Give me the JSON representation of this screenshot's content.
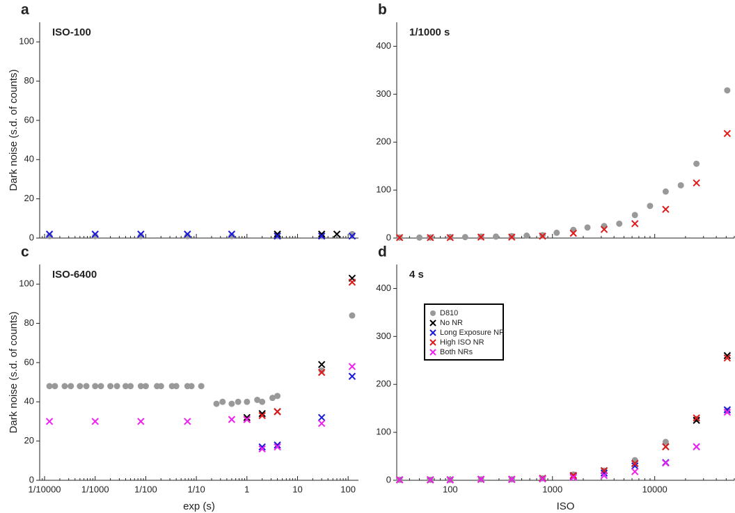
{
  "chart_data": [
    {
      "type": "scatter",
      "panel_label": "a",
      "title": "ISO-100",
      "ylabel": "Dark noise (s.d. of counts)",
      "log_x": true,
      "xlim": [
        8e-05,
        160
      ],
      "ylim": [
        0,
        110
      ],
      "xticks": [
        0.0001,
        0.001,
        0.01,
        0.1,
        1,
        10,
        100
      ],
      "show_xtick_labels": false,
      "yticks": [
        0,
        20,
        40,
        60,
        80,
        100
      ],
      "series": [
        {
          "color": "#999999",
          "marker": "dot",
          "x": [
            0.000125,
            0.001,
            0.008,
            0.0667,
            0.5,
            4,
            30,
            120
          ],
          "values": [
            1,
            1,
            1,
            1,
            1,
            1,
            1,
            2
          ]
        },
        {
          "color": "#000000",
          "marker": "cross",
          "x": [
            4,
            30,
            60
          ],
          "values": [
            2,
            2,
            2
          ]
        },
        {
          "color": "#1a1adb",
          "marker": "cross",
          "x": [
            0.000125,
            0.001,
            0.008,
            0.0667,
            0.5,
            4,
            30,
            120
          ],
          "values": [
            2,
            2,
            2,
            2,
            2,
            1,
            1,
            1
          ]
        }
      ]
    },
    {
      "type": "scatter",
      "panel_label": "b",
      "title": "1/1000 s",
      "log_x": true,
      "xlim": [
        30,
        60000
      ],
      "ylim": [
        0,
        450
      ],
      "xticks": [
        100,
        1000,
        10000
      ],
      "show_xtick_labels": false,
      "yticks": [
        0,
        100,
        200,
        300,
        400
      ],
      "series": [
        {
          "color": "#999999",
          "marker": "dot",
          "x": [
            32,
            50,
            64,
            100,
            140,
            200,
            280,
            400,
            560,
            800,
            1100,
            1600,
            2200,
            3200,
            4500,
            6400,
            9000,
            12800,
            18000,
            25600,
            51200
          ],
          "values": [
            1,
            1,
            1,
            2,
            2,
            3,
            3,
            4,
            5,
            6,
            11,
            17,
            22,
            25,
            30,
            48,
            67,
            97,
            110,
            155,
            308
          ]
        },
        {
          "color": "#e01a1a",
          "marker": "cross",
          "x": [
            32,
            64,
            100,
            200,
            400,
            800,
            1600,
            3200,
            6400,
            12800,
            25600,
            51200
          ],
          "values": [
            1,
            1,
            1,
            2,
            2,
            4,
            10,
            18,
            30,
            60,
            115,
            218
          ]
        }
      ]
    },
    {
      "type": "scatter",
      "panel_label": "c",
      "title": "ISO-6400",
      "ylabel": "Dark noise (s.d. of counts)",
      "xlabel": "exp (s)",
      "log_x": true,
      "xlim": [
        8e-05,
        160
      ],
      "ylim": [
        0,
        110
      ],
      "xticks": [
        {
          "value": 0.0001,
          "label": "1/10000"
        },
        {
          "value": 0.001,
          "label": "1/1000"
        },
        {
          "value": 0.01,
          "label": "1/100"
        },
        {
          "value": 0.1,
          "label": "1/10"
        },
        1,
        10,
        100
      ],
      "show_xtick_labels": true,
      "yticks": [
        0,
        20,
        40,
        60,
        80,
        100
      ],
      "series": [
        {
          "color": "#999999",
          "marker": "dot",
          "x": [
            0.000125,
            0.00016,
            0.00025,
            0.00033,
            0.0005,
            0.00067,
            0.001,
            0.0013,
            0.002,
            0.0027,
            0.004,
            0.005,
            0.008,
            0.01,
            0.0167,
            0.02,
            0.033,
            0.04,
            0.0667,
            0.08,
            0.125,
            0.25,
            0.33,
            0.5,
            0.67,
            1,
            1.6,
            2,
            3.2,
            4,
            30,
            120
          ],
          "values": [
            48,
            48,
            48,
            48,
            48,
            48,
            48,
            48,
            48,
            48,
            48,
            48,
            48,
            48,
            48,
            48,
            48,
            48,
            48,
            48,
            48,
            39,
            40,
            39,
            40,
            40,
            41,
            40,
            42,
            43,
            56,
            84
          ]
        },
        {
          "color": "#000000",
          "marker": "cross",
          "x": [
            1,
            2,
            4,
            30,
            120
          ],
          "values": [
            32,
            34,
            35,
            59,
            103
          ]
        },
        {
          "color": "#1a1adb",
          "marker": "cross",
          "x": [
            2,
            4,
            30,
            120
          ],
          "values": [
            17,
            18,
            32,
            53
          ]
        },
        {
          "color": "#e01a1a",
          "marker": "cross",
          "x": [
            1,
            2,
            4,
            30,
            120
          ],
          "values": [
            31,
            33,
            35,
            55,
            101
          ]
        },
        {
          "color": "#ee22ee",
          "marker": "cross",
          "x": [
            0.000125,
            0.001,
            0.008,
            0.0667,
            0.5,
            1,
            2,
            4,
            30,
            120
          ],
          "values": [
            30,
            30,
            30,
            30,
            31,
            31,
            16,
            17,
            29,
            58
          ]
        }
      ]
    },
    {
      "type": "scatter",
      "panel_label": "d",
      "title": "4 s",
      "xlabel": "ISO",
      "log_x": true,
      "xlim": [
        30,
        60000
      ],
      "ylim": [
        0,
        450
      ],
      "xticks": [
        100,
        1000,
        10000
      ],
      "show_xtick_labels": true,
      "yticks": [
        0,
        100,
        200,
        300,
        400
      ],
      "legend": "upper left",
      "x": [
        32,
        64,
        100,
        200,
        400,
        800,
        1600,
        3200,
        6400,
        12800,
        25600,
        51200
      ],
      "series": [
        {
          "name": "D810",
          "color": "#999999",
          "marker": "dot",
          "values": [
            1,
            1,
            1,
            2,
            2,
            4,
            12,
            20,
            42,
            80,
            128,
            145
          ]
        },
        {
          "name": "No NR",
          "color": "#000000",
          "marker": "cross",
          "values": [
            1,
            1,
            1,
            2,
            2,
            4,
            10,
            20,
            35,
            70,
            125,
            260
          ]
        },
        {
          "name": "Long Exposure NR",
          "color": "#1a1adb",
          "marker": "cross",
          "values": [
            1,
            1,
            1,
            2,
            2,
            3,
            8,
            15,
            30,
            37,
            70,
            147
          ]
        },
        {
          "name": "High ISO NR",
          "color": "#e01a1a",
          "marker": "cross",
          "values": [
            1,
            1,
            1,
            2,
            2,
            4,
            10,
            20,
            35,
            70,
            130,
            255
          ]
        },
        {
          "name": "Both NRs",
          "color": "#ee22ee",
          "marker": "cross",
          "values": [
            1,
            1,
            1,
            2,
            2,
            3,
            6,
            10,
            18,
            36,
            70,
            142
          ]
        }
      ]
    }
  ]
}
